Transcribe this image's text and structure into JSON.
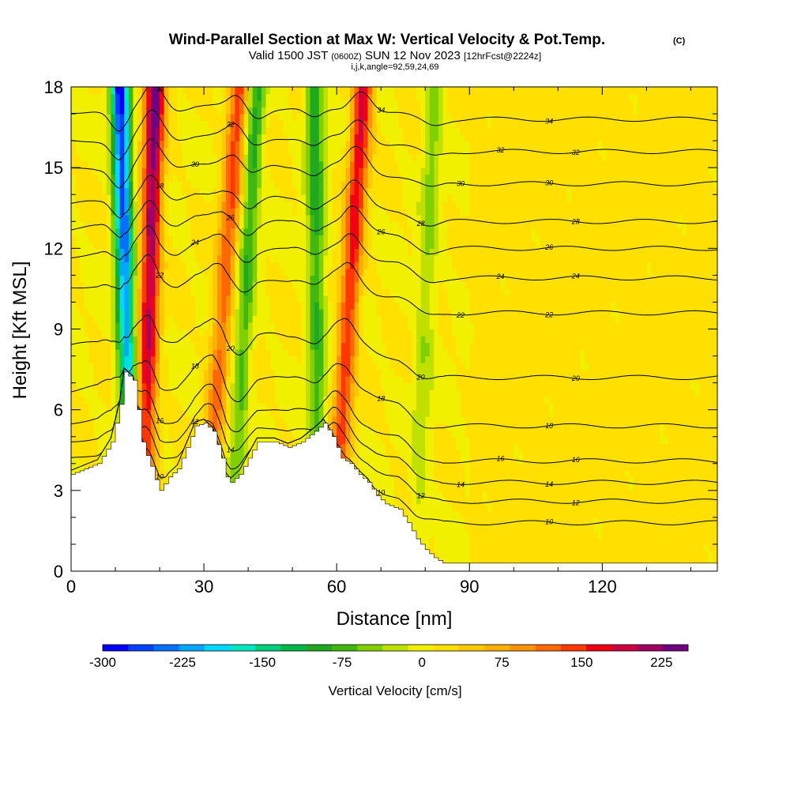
{
  "chart_data": {
    "type": "heatmap",
    "title": "Wind-Parallel Section at Max W: Vertical Velocity & Pot.Temp.",
    "title_suffix": "(C)",
    "subtitle": {
      "valid_prefix": "Valid 1500 JST",
      "utc": "(0600Z)",
      "date": "SUN 12 Nov 2023",
      "forecast": "[12hrFcst@2224z]"
    },
    "indices_line": "i,j,k,angle=92,59,24,69",
    "xlabel": "Distance [nm]",
    "ylabel": "Height [Kft MSL]",
    "xlim": [
      0,
      146
    ],
    "ylim": [
      0,
      18
    ],
    "x_ticks": [
      0,
      30,
      60,
      90,
      120
    ],
    "y_ticks": [
      0,
      3,
      6,
      9,
      12,
      15,
      18
    ],
    "grid": false,
    "colorbar": {
      "label": "Vertical Velocity [cm/s]",
      "min": -300,
      "max": 250,
      "tick_values": [
        -300,
        -225,
        -150,
        -75,
        0,
        75,
        150,
        225
      ],
      "tick_labels": [
        "-300",
        "-225",
        "-150",
        "-75",
        "0",
        "75",
        "150",
        "225"
      ],
      "colors": [
        "#0000ff",
        "#0040ff",
        "#0070ff",
        "#00a8ff",
        "#00d8ff",
        "#00e8c0",
        "#00d078",
        "#00b848",
        "#20a820",
        "#40b810",
        "#80d000",
        "#c0e000",
        "#f0f000",
        "#ffe000",
        "#ffc800",
        "#ffb000",
        "#ff9000",
        "#ff6800",
        "#ff3800",
        "#f00010",
        "#d00040",
        "#a00060",
        "#700080"
      ]
    },
    "updraft_bands": [
      {
        "x_bottom": 16,
        "x_top": 19,
        "peak": 240
      },
      {
        "x_bottom": 30,
        "x_top": 38,
        "peak": 140
      },
      {
        "x_bottom": 59,
        "x_top": 66,
        "peak": 180
      }
    ],
    "downdraft_bands": [
      {
        "x_bottom": 14,
        "x_top": 11,
        "peak": -300
      },
      {
        "x_bottom": 36,
        "x_top": 42,
        "peak": -110
      },
      {
        "x_bottom": 56,
        "x_top": 55,
        "peak": -120
      },
      {
        "x_bottom": 78,
        "x_top": 82,
        "peak": -60
      }
    ],
    "terrain": [
      [
        0,
        3.6
      ],
      [
        3,
        3.8
      ],
      [
        6,
        4.0
      ],
      [
        9,
        4.8
      ],
      [
        11,
        6.2
      ],
      [
        12,
        7.4
      ],
      [
        14,
        7.1
      ],
      [
        15,
        6.0
      ],
      [
        16,
        4.8
      ],
      [
        17,
        4.3
      ],
      [
        18,
        3.9
      ],
      [
        19,
        3.4
      ],
      [
        20,
        3.0
      ],
      [
        22,
        3.5
      ],
      [
        24,
        3.8
      ],
      [
        26,
        4.6
      ],
      [
        28,
        5.4
      ],
      [
        30,
        5.5
      ],
      [
        32,
        5.2
      ],
      [
        34,
        4.2
      ],
      [
        35,
        3.5
      ],
      [
        36,
        3.3
      ],
      [
        38,
        3.6
      ],
      [
        40,
        4.2
      ],
      [
        42,
        4.8
      ],
      [
        46,
        4.8
      ],
      [
        49,
        4.6
      ],
      [
        52,
        4.8
      ],
      [
        55,
        5.2
      ],
      [
        57,
        5.5
      ],
      [
        59,
        5.0
      ],
      [
        61,
        4.2
      ],
      [
        63,
        4.0
      ],
      [
        65,
        3.6
      ],
      [
        67,
        3.3
      ],
      [
        69,
        2.8
      ],
      [
        71,
        2.5
      ],
      [
        74,
        2.3
      ],
      [
        76,
        1.8
      ],
      [
        78,
        1.2
      ],
      [
        80,
        0.8
      ],
      [
        82,
        0.5
      ],
      [
        84,
        0.3
      ],
      [
        146,
        0.3
      ]
    ],
    "theta_contours": [
      {
        "label": "10",
        "base_height": 1.8
      },
      {
        "label": "12",
        "base_height": 2.6
      },
      {
        "label": "14",
        "base_height": 3.3
      },
      {
        "label": "16",
        "base_height": 4.1
      },
      {
        "label": "18",
        "base_height": 5.4
      },
      {
        "label": "20",
        "base_height": 7.2
      },
      {
        "label": "22",
        "base_height": 9.6
      },
      {
        "label": "24",
        "base_height": 10.9
      },
      {
        "label": "26",
        "base_height": 12.0
      },
      {
        "label": "28",
        "base_height": 13.0
      },
      {
        "label": "30",
        "base_height": 14.4
      },
      {
        "label": "32",
        "base_height": 15.6
      },
      {
        "label": "34",
        "base_height": 16.8
      }
    ]
  }
}
